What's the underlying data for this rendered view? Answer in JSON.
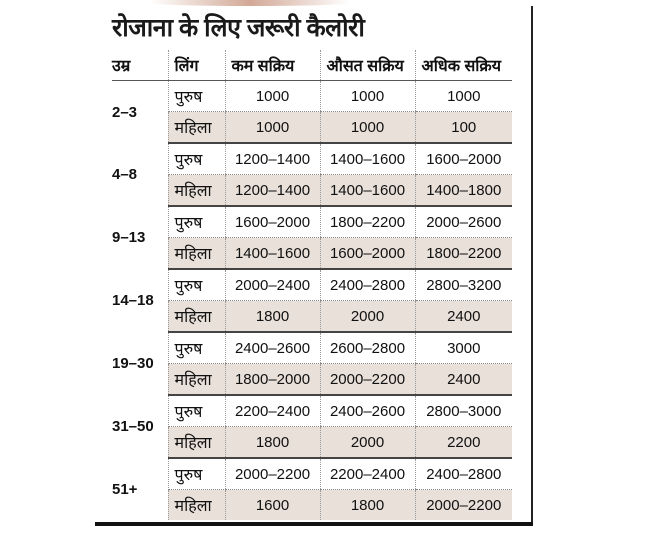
{
  "title": "रोजाना के लिए जरूरी कैलोरी",
  "headers": [
    "उम्र",
    "लिंग",
    "कम सक्रिय",
    "औसत सक्रिय",
    "अधिक सक्रिय"
  ],
  "colors": {
    "female_row_bg": "#e8e0d9",
    "border": "#222222"
  },
  "groups": [
    {
      "age": "2–3",
      "rows": [
        {
          "gender": "पुरुष",
          "values": [
            "1000",
            "1000",
            "1000"
          ]
        },
        {
          "gender": "महिला",
          "values": [
            "1000",
            "1000",
            "100"
          ]
        }
      ]
    },
    {
      "age": "4–8",
      "rows": [
        {
          "gender": "पुरुष",
          "values": [
            "1200–1400",
            "1400–1600",
            "1600–2000"
          ]
        },
        {
          "gender": "महिला",
          "values": [
            "1200–1400",
            "1400–1600",
            "1400–1800"
          ]
        }
      ]
    },
    {
      "age": "9–13",
      "rows": [
        {
          "gender": "पुरुष",
          "values": [
            "1600–2000",
            "1800–2200",
            "2000–2600"
          ]
        },
        {
          "gender": "महिला",
          "values": [
            "1400–1600",
            "1600–2000",
            "1800–2200"
          ]
        }
      ]
    },
    {
      "age": "14–18",
      "rows": [
        {
          "gender": "पुरुष",
          "values": [
            "2000–2400",
            "2400–2800",
            "2800–3200"
          ]
        },
        {
          "gender": "महिला",
          "values": [
            "1800",
            "2000",
            "2400"
          ]
        }
      ]
    },
    {
      "age": "19–30",
      "rows": [
        {
          "gender": "पुरुष",
          "values": [
            "2400–2600",
            "2600–2800",
            "3000"
          ]
        },
        {
          "gender": "महिला",
          "values": [
            "1800–2000",
            "2000–2200",
            "2400"
          ]
        }
      ]
    },
    {
      "age": "31–50",
      "rows": [
        {
          "gender": "पुरुष",
          "values": [
            "2200–2400",
            "2400–2600",
            "2800–3000"
          ]
        },
        {
          "gender": "महिला",
          "values": [
            "1800",
            "2000",
            "2200"
          ]
        }
      ]
    },
    {
      "age": "51+",
      "rows": [
        {
          "gender": "पुरुष",
          "values": [
            "2000–2200",
            "2200–2400",
            "2400–2800"
          ]
        },
        {
          "gender": "महिला",
          "values": [
            "1600",
            "1800",
            "2000–2200"
          ]
        }
      ]
    }
  ]
}
